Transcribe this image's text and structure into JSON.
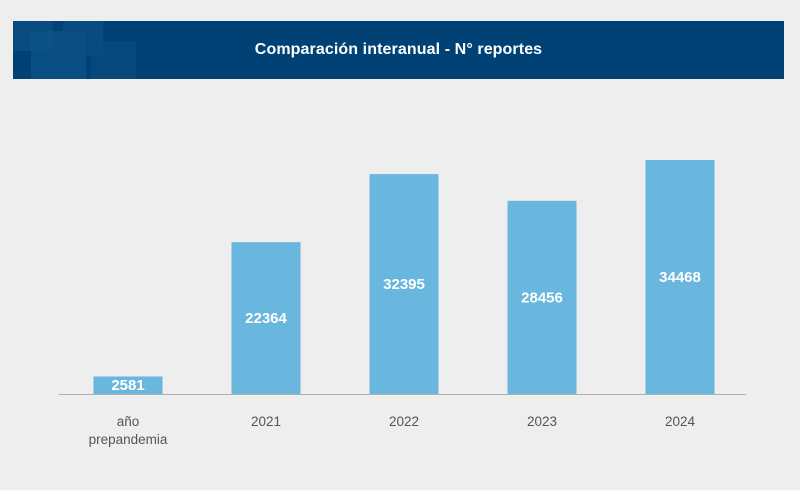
{
  "header": {
    "title": "Comparación interanual - N° reportes"
  },
  "colors": {
    "header_bg": "#004276",
    "bar": "#69b7df",
    "bar_label": "#ffffff",
    "axis": "#b0b0b0",
    "tick_label": "#555555",
    "background": "#eeeeee"
  },
  "chart_data": {
    "type": "bar",
    "title": "Comparación interanual - N° reportes",
    "categories": [
      [
        "año",
        "prepandemia"
      ],
      [
        "2021"
      ],
      [
        "2022"
      ],
      [
        "2023"
      ],
      [
        "2024"
      ]
    ],
    "values": [
      2581,
      22364,
      32395,
      28456,
      34468
    ],
    "data_labels": [
      "2581",
      "22364",
      "32395",
      "28456",
      "34468"
    ],
    "xlabel": "",
    "ylabel": "",
    "ylim": [
      0,
      35000
    ],
    "grid": false,
    "legend": "none"
  }
}
